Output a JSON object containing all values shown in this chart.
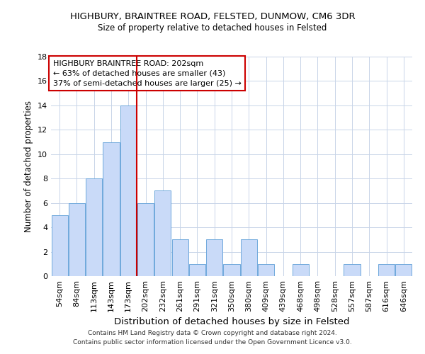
{
  "title": "HIGHBURY, BRAINTREE ROAD, FELSTED, DUNMOW, CM6 3DR",
  "subtitle": "Size of property relative to detached houses in Felsted",
  "xlabel": "Distribution of detached houses by size in Felsted",
  "ylabel": "Number of detached properties",
  "categories": [
    "54sqm",
    "84sqm",
    "113sqm",
    "143sqm",
    "173sqm",
    "202sqm",
    "232sqm",
    "261sqm",
    "291sqm",
    "321sqm",
    "350sqm",
    "380sqm",
    "409sqm",
    "439sqm",
    "468sqm",
    "498sqm",
    "528sqm",
    "557sqm",
    "587sqm",
    "616sqm",
    "646sqm"
  ],
  "values": [
    5,
    6,
    8,
    11,
    14,
    6,
    7,
    3,
    1,
    3,
    1,
    3,
    1,
    0,
    1,
    0,
    0,
    1,
    0,
    1,
    1
  ],
  "highlight_index": 5,
  "bar_color": "#c9daf8",
  "bar_edge_color": "#6fa8dc",
  "highlight_line_color": "#cc0000",
  "background_color": "#ffffff",
  "grid_color": "#c8d4e8",
  "ylim": [
    0,
    18
  ],
  "yticks": [
    0,
    2,
    4,
    6,
    8,
    10,
    12,
    14,
    16,
    18
  ],
  "annotation_title": "HIGHBURY BRAINTREE ROAD: 202sqm",
  "annotation_line1": "← 63% of detached houses are smaller (43)",
  "annotation_line2": "37% of semi-detached houses are larger (25) →",
  "footer_line1": "Contains HM Land Registry data © Crown copyright and database right 2024.",
  "footer_line2": "Contains public sector information licensed under the Open Government Licence v3.0."
}
